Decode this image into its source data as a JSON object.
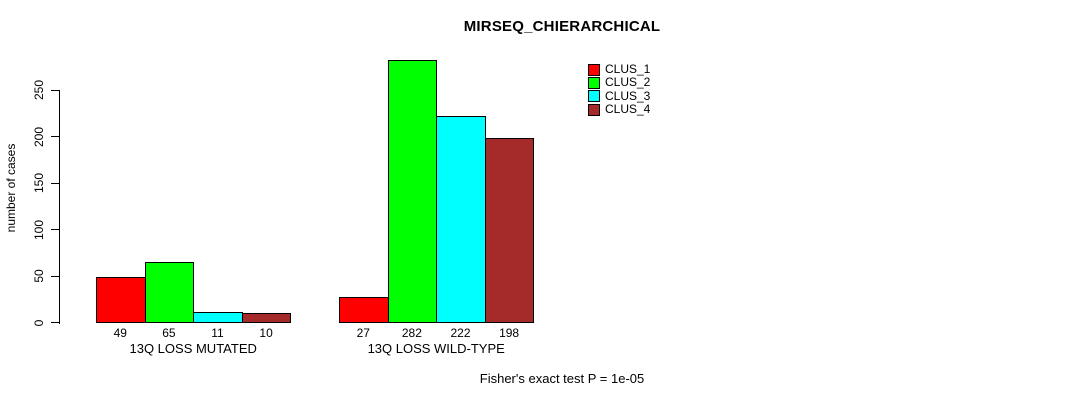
{
  "title": "MIRSEQ_CHIERARCHICAL",
  "footer": "Fisher's exact test P = 1e-05",
  "chart_data": {
    "type": "bar",
    "title": "MIRSEQ_CHIERARCHICAL",
    "xlabel": "",
    "ylabel": "number of cases",
    "categories": [
      "13Q LOSS MUTATED",
      "13Q LOSS WILD-TYPE"
    ],
    "series": [
      {
        "name": "CLUS_1",
        "color": "#ff0000",
        "values": [
          49,
          27
        ]
      },
      {
        "name": "CLUS_2",
        "color": "#00ff00",
        "values": [
          65,
          282
        ]
      },
      {
        "name": "CLUS_3",
        "color": "#00ffff",
        "values": [
          11,
          222
        ]
      },
      {
        "name": "CLUS_4",
        "color": "#a52a2a",
        "values": [
          10,
          198
        ]
      }
    ],
    "bar_value_labels": [
      [
        "49",
        "65",
        "11",
        "10"
      ],
      [
        "27",
        "282",
        "222",
        "198"
      ]
    ],
    "yticks": [
      0,
      50,
      100,
      150,
      200,
      250
    ],
    "ylim": [
      0,
      250
    ],
    "grid": false,
    "legend_position": "top-right",
    "legend_entries": [
      "CLUS_1",
      "CLUS_2",
      "CLUS_3",
      "CLUS_4"
    ],
    "annotation": "Fisher's exact test P = 1e-05"
  }
}
